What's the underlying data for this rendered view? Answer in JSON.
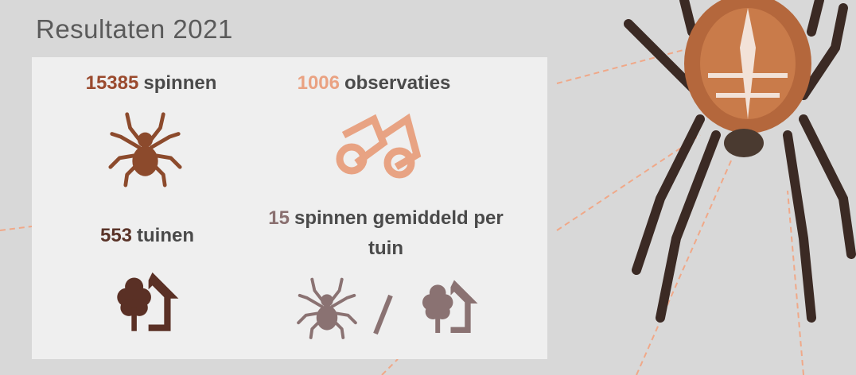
{
  "title": "Resultaten 2021",
  "stats": [
    {
      "number": "15385",
      "label": "spinnen"
    },
    {
      "number": "1006",
      "label": "observaties"
    },
    {
      "number": "553",
      "label": "tuinen"
    },
    {
      "number": "15",
      "label": "spinnen gemiddeld per tuin"
    }
  ]
}
